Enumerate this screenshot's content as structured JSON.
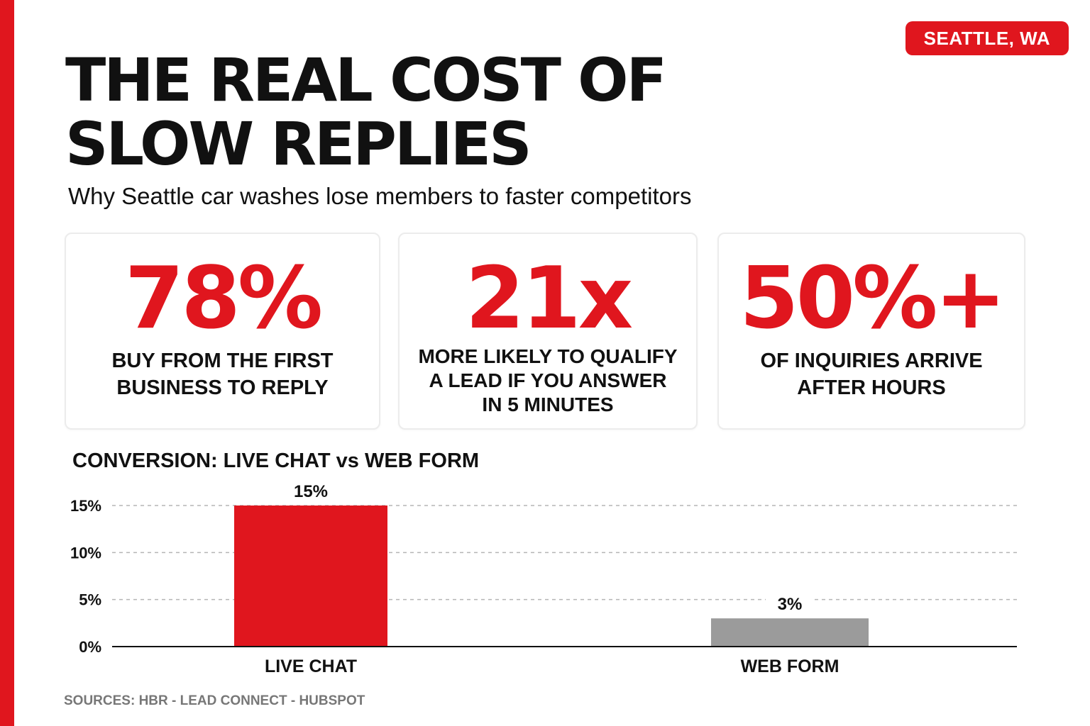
{
  "badge": "SEATTLE, WA",
  "headline": {
    "line1": "THE REAL COST OF",
    "line2": "SLOW REPLIES"
  },
  "subheadline": "Why Seattle car washes lose members to faster competitors",
  "stats": [
    {
      "value": "78%",
      "lines": [
        "BUY FROM THE FIRST",
        "BUSINESS TO REPLY"
      ]
    },
    {
      "value": "21x",
      "lines": [
        "MORE LIKELY TO QUALIFY",
        "A LEAD IF YOU ANSWER",
        "IN 5 MINUTES"
      ]
    },
    {
      "value": "50%+",
      "lines": [
        "OF INQUIRIES ARRIVE",
        "AFTER HOURS"
      ]
    }
  ],
  "chart_data": {
    "type": "bar",
    "title": "CONVERSION: LIVE CHAT vs WEB FORM",
    "categories": [
      "LIVE CHAT",
      "WEB FORM"
    ],
    "values": [
      15,
      3
    ],
    "data_labels": [
      "15%",
      "3%"
    ],
    "bar_colors": [
      "#e0161e",
      "#9b9b9b"
    ],
    "ylim": [
      0,
      15
    ],
    "yticks": [
      0,
      5,
      10,
      15
    ],
    "ytick_labels": [
      "0%",
      "5%",
      "10%",
      "15%"
    ],
    "grid": true,
    "grid_style": "dashed",
    "legend": "none"
  },
  "sources": "SOURCES: HBR - LEAD CONNECT - HUBSPOT",
  "colors": {
    "accent": "#e0161e",
    "text": "#111111",
    "muted": "#777777"
  }
}
